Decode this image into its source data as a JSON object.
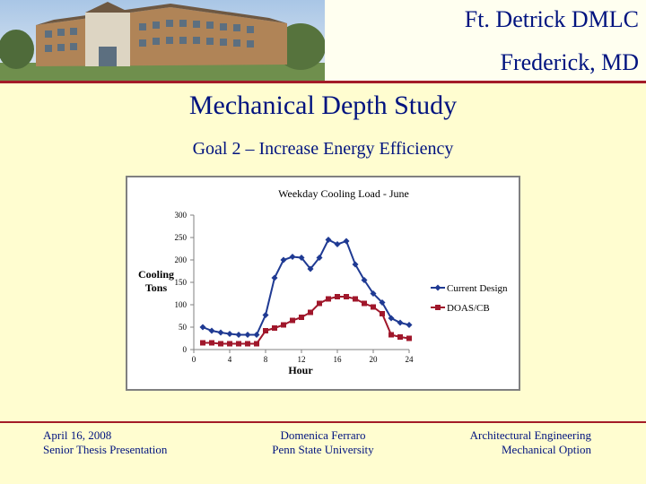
{
  "header": {
    "line1": "Ft. Detrick DMLC",
    "line2": "Frederick, MD"
  },
  "slide": {
    "title": "Mechanical Depth Study",
    "subtitle": "Goal 2 – Increase Energy Efficiency"
  },
  "chart_data": {
    "type": "line",
    "title": "Weekday Cooling Load - June",
    "xlabel": "Hour",
    "ylabel_line1": "Cooling",
    "ylabel_line2": "Tons",
    "xlim": [
      0,
      24
    ],
    "ylim": [
      0,
      300
    ],
    "x_ticks": [
      0,
      4,
      8,
      12,
      16,
      20,
      24
    ],
    "y_ticks": [
      0,
      50,
      100,
      150,
      200,
      250,
      300
    ],
    "x": [
      1,
      2,
      3,
      4,
      5,
      6,
      7,
      8,
      9,
      10,
      11,
      12,
      13,
      14,
      15,
      16,
      17,
      18,
      19,
      20,
      21,
      22,
      23,
      24
    ],
    "series": [
      {
        "name": "Current Design",
        "color": "#1f3a93",
        "marker": "diamond",
        "values": [
          50,
          42,
          38,
          35,
          33,
          33,
          33,
          77,
          160,
          200,
          207,
          205,
          180,
          205,
          245,
          235,
          242,
          190,
          155,
          125,
          105,
          70,
          60,
          55
        ]
      },
      {
        "name": "DOAS/CB",
        "color": "#a0172b",
        "marker": "square",
        "values": [
          15,
          15,
          13,
          13,
          13,
          13,
          13,
          42,
          48,
          55,
          65,
          72,
          83,
          103,
          113,
          118,
          118,
          113,
          103,
          95,
          80,
          33,
          28,
          25
        ]
      }
    ],
    "legend_position": "right"
  },
  "footer": {
    "date": "April 16, 2008",
    "event": "Senior Thesis Presentation",
    "author": "Domenica Ferraro",
    "school": "Penn State University",
    "dept": "Architectural Engineering",
    "option": "Mechanical Option"
  }
}
